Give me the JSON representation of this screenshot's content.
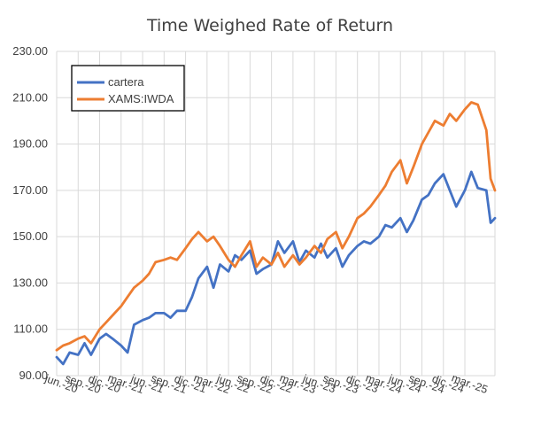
{
  "chart_data": {
    "type": "line",
    "title": "Time Weighed Rate of Return",
    "xlabel": "",
    "ylabel": "",
    "ylim": [
      90,
      230
    ],
    "yticks": [
      "90.00",
      "110.00",
      "130.00",
      "150.00",
      "170.00",
      "190.00",
      "210.00",
      "230.00"
    ],
    "x_labels": [
      "jun.-20",
      "sep.-20",
      "dic.-20",
      "mar.-21",
      "jun.-21",
      "sep.-21",
      "dic.-21",
      "mar.-22",
      "jun.-22",
      "sep.-22",
      "dic.-22",
      "mar.-23",
      "jun.-23",
      "sep.-23",
      "dic.-23",
      "mar.-24",
      "jun.-24",
      "sep.-24",
      "dic.-24",
      "mar.-25"
    ],
    "grid": true,
    "legend_position": "top-left",
    "series": [
      {
        "name": "cartera",
        "color": "#4472c4",
        "points": [
          [
            0,
            98
          ],
          [
            0.3,
            95
          ],
          [
            0.6,
            100
          ],
          [
            1,
            99
          ],
          [
            1.3,
            104
          ],
          [
            1.6,
            99
          ],
          [
            2,
            106
          ],
          [
            2.3,
            108
          ],
          [
            2.6,
            106
          ],
          [
            3,
            103
          ],
          [
            3.3,
            100
          ],
          [
            3.6,
            112
          ],
          [
            4,
            114
          ],
          [
            4.3,
            115
          ],
          [
            4.6,
            117
          ],
          [
            5,
            117
          ],
          [
            5.3,
            115
          ],
          [
            5.6,
            118
          ],
          [
            6,
            118
          ],
          [
            6.3,
            124
          ],
          [
            6.6,
            132
          ],
          [
            7,
            137
          ],
          [
            7.3,
            128
          ],
          [
            7.6,
            138
          ],
          [
            8,
            135
          ],
          [
            8.3,
            142
          ],
          [
            8.6,
            140
          ],
          [
            9,
            144
          ],
          [
            9.3,
            134
          ],
          [
            9.6,
            136
          ],
          [
            10,
            138
          ],
          [
            10.3,
            148
          ],
          [
            10.6,
            143
          ],
          [
            11,
            148
          ],
          [
            11.3,
            139
          ],
          [
            11.6,
            144
          ],
          [
            12,
            141
          ],
          [
            12.3,
            147
          ],
          [
            12.6,
            141
          ],
          [
            13,
            145
          ],
          [
            13.3,
            137
          ],
          [
            13.6,
            142
          ],
          [
            14,
            146
          ],
          [
            14.3,
            148
          ],
          [
            14.6,
            147
          ],
          [
            15,
            150
          ],
          [
            15.3,
            155
          ],
          [
            15.6,
            154
          ],
          [
            16,
            158
          ],
          [
            16.3,
            152
          ],
          [
            16.6,
            157
          ],
          [
            17,
            166
          ],
          [
            17.3,
            168
          ],
          [
            17.6,
            173
          ],
          [
            18,
            177
          ],
          [
            18.3,
            170
          ],
          [
            18.6,
            163
          ],
          [
            19,
            170
          ],
          [
            19.3,
            178
          ],
          [
            19.6,
            171
          ],
          [
            20,
            170
          ],
          [
            20.2,
            156
          ],
          [
            20.4,
            158
          ]
        ]
      },
      {
        "name": "XAMS:IWDA",
        "color": "#ed7d31",
        "points": [
          [
            0,
            101
          ],
          [
            0.3,
            103
          ],
          [
            0.6,
            104
          ],
          [
            1,
            106
          ],
          [
            1.3,
            107
          ],
          [
            1.6,
            104
          ],
          [
            2,
            110
          ],
          [
            2.3,
            113
          ],
          [
            2.6,
            116
          ],
          [
            3,
            120
          ],
          [
            3.3,
            124
          ],
          [
            3.6,
            128
          ],
          [
            4,
            131
          ],
          [
            4.3,
            134
          ],
          [
            4.6,
            139
          ],
          [
            5,
            140
          ],
          [
            5.3,
            141
          ],
          [
            5.6,
            140
          ],
          [
            6,
            145
          ],
          [
            6.3,
            149
          ],
          [
            6.6,
            152
          ],
          [
            7,
            148
          ],
          [
            7.3,
            150
          ],
          [
            7.6,
            146
          ],
          [
            8,
            140
          ],
          [
            8.3,
            137
          ],
          [
            8.6,
            142
          ],
          [
            9,
            148
          ],
          [
            9.3,
            137
          ],
          [
            9.6,
            141
          ],
          [
            10,
            138
          ],
          [
            10.3,
            143
          ],
          [
            10.6,
            137
          ],
          [
            11,
            142
          ],
          [
            11.3,
            138
          ],
          [
            11.6,
            141
          ],
          [
            12,
            146
          ],
          [
            12.3,
            143
          ],
          [
            12.6,
            149
          ],
          [
            13,
            152
          ],
          [
            13.3,
            145
          ],
          [
            13.6,
            150
          ],
          [
            14,
            158
          ],
          [
            14.3,
            160
          ],
          [
            14.6,
            163
          ],
          [
            15,
            168
          ],
          [
            15.3,
            172
          ],
          [
            15.6,
            178
          ],
          [
            16,
            183
          ],
          [
            16.3,
            173
          ],
          [
            16.6,
            180
          ],
          [
            17,
            190
          ],
          [
            17.3,
            195
          ],
          [
            17.6,
            200
          ],
          [
            18,
            198
          ],
          [
            18.3,
            203
          ],
          [
            18.6,
            200
          ],
          [
            19,
            205
          ],
          [
            19.3,
            208
          ],
          [
            19.6,
            207
          ],
          [
            20,
            196
          ],
          [
            20.2,
            175
          ],
          [
            20.4,
            170
          ]
        ]
      }
    ]
  }
}
